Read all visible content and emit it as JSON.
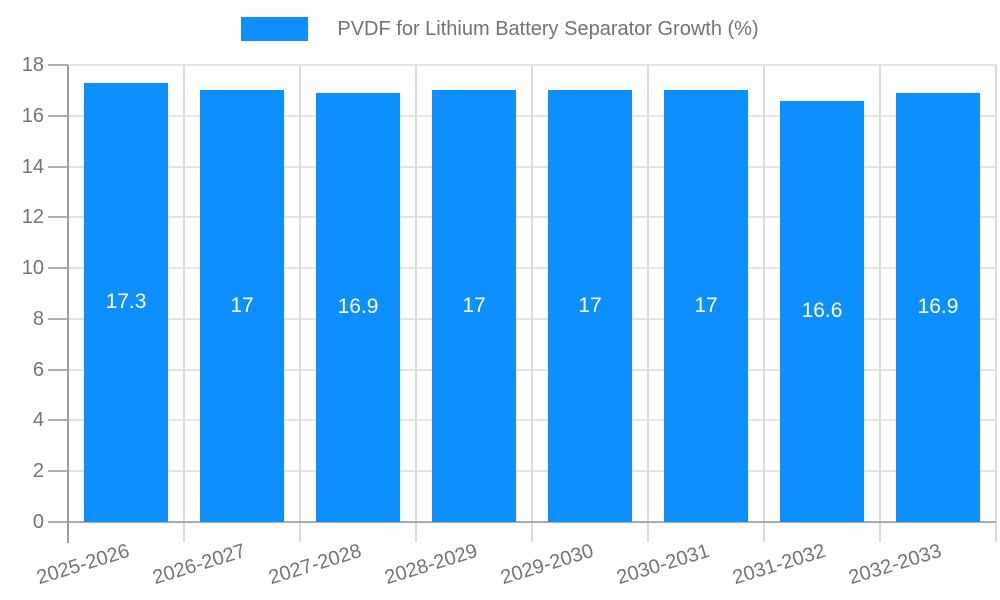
{
  "chart_data": {
    "type": "bar",
    "title": "",
    "categories": [
      "2025-2026",
      "2026-2027",
      "2027-2028",
      "2028-2029",
      "2029-2030",
      "2030-2031",
      "2031-2032",
      "2032-2033"
    ],
    "series": [
      {
        "name": "PVDF for Lithium Battery Separator Growth (%)",
        "values": [
          17.3,
          17,
          16.9,
          17,
          17,
          17,
          16.6,
          16.9
        ]
      }
    ],
    "xlabel": "",
    "ylabel": "",
    "ylim": [
      0,
      18
    ],
    "ytick_step": 2,
    "grid": true,
    "legend_position": "top",
    "value_labels_shown": true
  },
  "colors": {
    "bar": "#0d8fff",
    "value_label": "#ffffff",
    "axis_line": "#9e9e9e",
    "bottom_axis_line": "#ababab",
    "gridline": "#e4e4e4",
    "vertical_gridline": "#dcdcdc",
    "tick": "#b0b0b0",
    "tick_label": "#757575",
    "legend_text": "#737373"
  }
}
